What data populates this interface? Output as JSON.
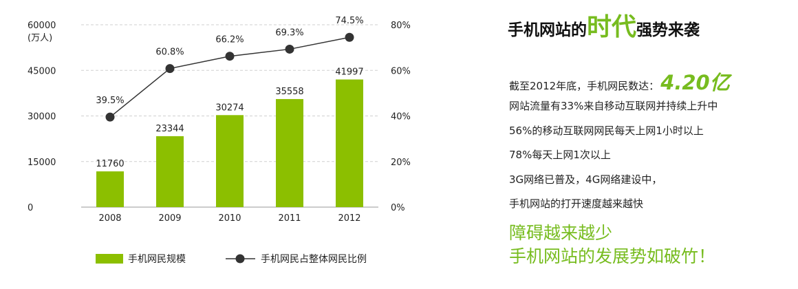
{
  "chart_data": {
    "type": "bar",
    "categories": [
      "2008",
      "2009",
      "2010",
      "2011",
      "2012"
    ],
    "series": [
      {
        "name": "手机网民规模",
        "kind": "bar",
        "axis": "left",
        "values": [
          11760,
          23344,
          30274,
          35558,
          41997
        ],
        "color": "#8cbf00"
      },
      {
        "name": "手机网民占整体网民比例",
        "kind": "line",
        "axis": "right",
        "values": [
          39.5,
          60.8,
          66.2,
          69.3,
          74.5
        ],
        "labels": [
          "39.5%",
          "60.8%",
          "66.2%",
          "69.3%",
          "74.5%"
        ],
        "color": "#333333"
      }
    ],
    "y_left": {
      "min": 0,
      "max": 60000,
      "ticks": [
        "0",
        "15000",
        "30000",
        "45000",
        "60000"
      ],
      "unit_label": "(万人)"
    },
    "y_right": {
      "min": 0,
      "max": 80,
      "ticks": [
        "0%",
        "20%",
        "40%",
        "60%",
        "80%"
      ]
    },
    "grid": true,
    "legend_position": "bottom"
  },
  "headline": {
    "part1": "手机网站的",
    "part2": "时代",
    "part3": "强势来袭"
  },
  "stat": {
    "label": "截至2012年底，手机网民数达：",
    "value": "4.20亿"
  },
  "facts": [
    "网站流量有33%来自移动互联网并持续上升中",
    "56%的移动互联网网民每天上网1小时以上",
    "78%每天上网1次以上",
    "3G网络已普及，4G网络建设中，",
    "手机网站的打开速度越来越快"
  ],
  "slogan": {
    "line1": "障碍越来越少",
    "line2": "手机网站的发展势如破竹！"
  }
}
